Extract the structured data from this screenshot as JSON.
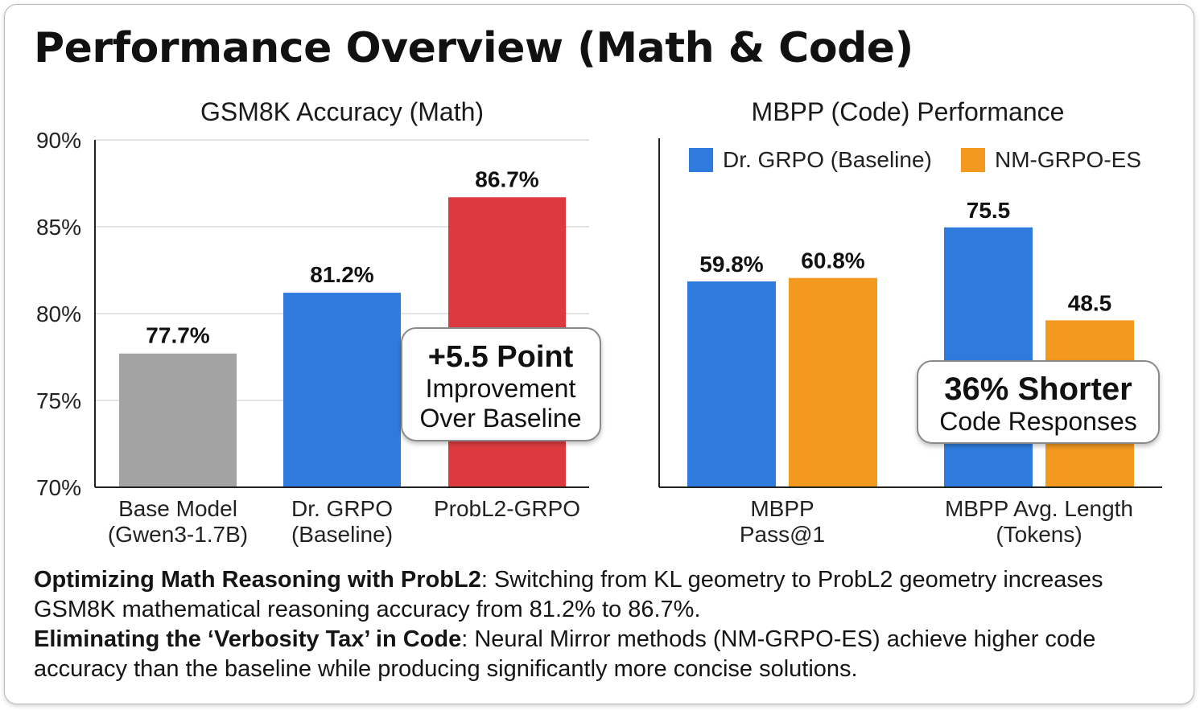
{
  "page_title": "Performance Overview (Math & Code)",
  "chart_data": [
    {
      "type": "bar",
      "title": "GSM8K Accuracy (Math)",
      "xlabel": "",
      "ylabel": "",
      "ylim": [
        70,
        90
      ],
      "yticks": [
        70,
        75,
        80,
        85,
        90
      ],
      "ytick_labels": [
        "70%",
        "75%",
        "80%",
        "85%",
        "90%"
      ],
      "grid": true,
      "categories": [
        [
          "Base Model",
          "(Gwen3-1.7B)"
        ],
        [
          "Dr. GRPO",
          "(Baseline)"
        ],
        [
          "ProbL2-GRPO"
        ]
      ],
      "values": [
        77.7,
        81.2,
        86.7
      ],
      "value_labels": [
        "77.7%",
        "81.2%",
        "86.7%"
      ],
      "colors": [
        "#a3a3a3",
        "#2f7bdd",
        "#dd3a40"
      ],
      "annotation": {
        "headline": "+5.5 Point",
        "lines": [
          "Improvement",
          "Over Baseline"
        ]
      }
    },
    {
      "type": "bar",
      "title": "MBPP (Code) Performance",
      "legend_position": "top",
      "categories": [
        [
          "MBPP",
          "Pass@1"
        ],
        [
          "MBPP Avg. Length",
          "(Tokens)"
        ]
      ],
      "series": [
        {
          "name": "Dr. GRPO (Baseline)",
          "color": "#2f7bdd",
          "values": [
            59.8,
            75.5
          ],
          "value_labels": [
            "59.8%",
            "75.5"
          ]
        },
        {
          "name": "NM-GRPO-ES",
          "color": "#f3991f",
          "values": [
            60.8,
            48.5
          ],
          "value_labels": [
            "60.8%",
            "48.5"
          ]
        }
      ],
      "annotation": {
        "headline": "36% Shorter",
        "lines": [
          "Code Responses"
        ]
      }
    }
  ],
  "notes": [
    {
      "bold": "Optimizing Math Reasoning with ProbL2",
      "text": ": Switching from KL geometry to ProbL2 geometry increases GSM8K mathematical reasoning accuracy from 81.2% to 86.7%."
    },
    {
      "bold": "Eliminating the ‘Verbosity Tax’ in Code",
      "text": ": Neural Mirror methods (NM-GRPO-ES) achieve higher code accuracy than the baseline while producing significantly more concise solutions."
    }
  ]
}
